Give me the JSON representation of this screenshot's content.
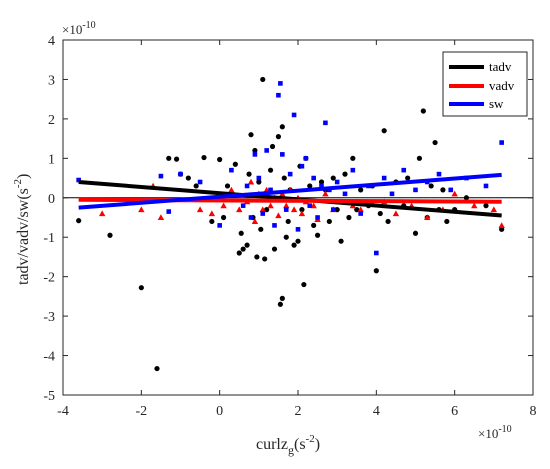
{
  "chart_data": {
    "type": "scatter",
    "xlabel": {
      "main": "curlz",
      "sub": "g",
      "unit": "(s",
      "sup": "-2",
      "close": ")"
    },
    "ylabel": {
      "main": "tadv/vadv/sw",
      "unit": "(s",
      "sup": "-2",
      "close": ")"
    },
    "x_exponent": {
      "base": "×10",
      "power": "-10"
    },
    "y_exponent": {
      "base": "×10",
      "power": "-10"
    },
    "xlim": [
      -4,
      8
    ],
    "ylim": [
      -5,
      4
    ],
    "x_ticks": [
      -4,
      -2,
      0,
      2,
      4,
      6,
      8
    ],
    "y_ticks": [
      -5,
      -4,
      -3,
      -2,
      -1,
      0,
      1,
      2,
      3,
      4
    ],
    "x_tick_labels": [
      "-4",
      "-2",
      "0",
      "2",
      "4",
      "6",
      "8"
    ],
    "y_tick_labels": [
      "-5",
      "-4",
      "-3",
      "-2",
      "-1",
      "0",
      "1",
      "2",
      "3",
      "4"
    ],
    "zero_line": true,
    "grid": false,
    "legend_position": "top-right",
    "series": [
      {
        "name": "tadv",
        "color": "#000000",
        "marker": "circle",
        "trend": {
          "x": [
            -3.6,
            7.2
          ],
          "y": [
            0.4,
            -0.45
          ]
        },
        "points": [
          [
            -3.6,
            -0.58
          ],
          [
            -2.8,
            -0.95
          ],
          [
            -2.0,
            -2.28
          ],
          [
            -1.6,
            -4.33
          ],
          [
            -1.3,
            1.0
          ],
          [
            -1.1,
            0.98
          ],
          [
            -1.0,
            0.6
          ],
          [
            -0.8,
            0.5
          ],
          [
            -0.6,
            0.3
          ],
          [
            -0.4,
            1.02
          ],
          [
            -0.2,
            -0.6
          ],
          [
            0.0,
            0.97
          ],
          [
            0.1,
            -0.5
          ],
          [
            0.2,
            0.3
          ],
          [
            0.3,
            0.1
          ],
          [
            0.4,
            0.85
          ],
          [
            0.5,
            -1.4
          ],
          [
            0.55,
            -0.9
          ],
          [
            0.6,
            -1.3
          ],
          [
            0.7,
            -1.2
          ],
          [
            0.75,
            0.6
          ],
          [
            0.8,
            1.6
          ],
          [
            0.85,
            -0.5
          ],
          [
            0.9,
            1.2
          ],
          [
            0.95,
            -1.5
          ],
          [
            1.0,
            0.4
          ],
          [
            1.05,
            -0.8
          ],
          [
            1.1,
            3.0
          ],
          [
            1.15,
            -1.55
          ],
          [
            1.2,
            -0.3
          ],
          [
            1.3,
            0.7
          ],
          [
            1.35,
            1.3
          ],
          [
            1.4,
            -1.3
          ],
          [
            1.5,
            1.55
          ],
          [
            1.55,
            -2.7
          ],
          [
            1.6,
            -2.55
          ],
          [
            1.6,
            1.8
          ],
          [
            1.65,
            0.5
          ],
          [
            1.7,
            -1.0
          ],
          [
            1.75,
            -0.6
          ],
          [
            1.8,
            0.2
          ],
          [
            1.9,
            -1.2
          ],
          [
            2.0,
            -1.1
          ],
          [
            2.05,
            0.8
          ],
          [
            2.1,
            -0.3
          ],
          [
            2.15,
            -2.2
          ],
          [
            2.2,
            1.0
          ],
          [
            2.3,
            0.3
          ],
          [
            2.4,
            -0.7
          ],
          [
            2.5,
            -0.95
          ],
          [
            2.6,
            0.4
          ],
          [
            2.7,
            0.2
          ],
          [
            2.8,
            -0.6
          ],
          [
            2.9,
            0.5
          ],
          [
            3.0,
            -0.3
          ],
          [
            3.1,
            -1.1
          ],
          [
            3.2,
            0.6
          ],
          [
            3.3,
            -0.5
          ],
          [
            3.4,
            1.0
          ],
          [
            3.5,
            -0.3
          ],
          [
            3.6,
            0.2
          ],
          [
            3.8,
            -0.2
          ],
          [
            3.9,
            0.3
          ],
          [
            4.0,
            -1.85
          ],
          [
            4.1,
            -0.4
          ],
          [
            4.2,
            1.7
          ],
          [
            4.3,
            -0.6
          ],
          [
            4.5,
            0.4
          ],
          [
            4.7,
            -0.2
          ],
          [
            4.8,
            0.5
          ],
          [
            5.0,
            -0.9
          ],
          [
            5.1,
            1.0
          ],
          [
            5.2,
            2.2
          ],
          [
            5.3,
            -0.5
          ],
          [
            5.4,
            0.3
          ],
          [
            5.5,
            1.4
          ],
          [
            5.6,
            -0.3
          ],
          [
            5.7,
            0.2
          ],
          [
            5.8,
            -0.6
          ],
          [
            6.0,
            -0.3
          ],
          [
            6.3,
            0.0
          ],
          [
            6.8,
            -0.2
          ],
          [
            7.2,
            -0.8
          ]
        ]
      },
      {
        "name": "vadv",
        "color": "#ff0000",
        "marker": "triangle",
        "trend": {
          "x": [
            -3.6,
            7.2
          ],
          "y": [
            -0.05,
            -0.1
          ]
        },
        "points": [
          [
            -3.0,
            -0.4
          ],
          [
            -2.0,
            -0.3
          ],
          [
            -1.7,
            0.3
          ],
          [
            -1.5,
            -0.5
          ],
          [
            -0.5,
            -0.3
          ],
          [
            -0.2,
            -0.4
          ],
          [
            0.1,
            -0.2
          ],
          [
            0.3,
            0.2
          ],
          [
            0.5,
            -0.3
          ],
          [
            0.7,
            -0.1
          ],
          [
            0.8,
            0.4
          ],
          [
            0.9,
            -0.6
          ],
          [
            1.0,
            0.1
          ],
          [
            1.1,
            -0.3
          ],
          [
            1.2,
            0.2
          ],
          [
            1.3,
            -0.2
          ],
          [
            1.4,
            0.0
          ],
          [
            1.5,
            -0.45
          ],
          [
            1.6,
            0.1
          ],
          [
            1.7,
            -0.2
          ],
          [
            1.8,
            0.2
          ],
          [
            1.9,
            -0.3
          ],
          [
            2.0,
            0.0
          ],
          [
            2.1,
            -0.4
          ],
          [
            2.2,
            -0.1
          ],
          [
            2.4,
            -0.2
          ],
          [
            2.5,
            -0.55
          ],
          [
            2.7,
            0.1
          ],
          [
            2.9,
            -0.3
          ],
          [
            3.1,
            -0.1
          ],
          [
            3.4,
            -0.2
          ],
          [
            3.6,
            -0.3
          ],
          [
            3.9,
            -0.15
          ],
          [
            4.2,
            -0.1
          ],
          [
            4.5,
            -0.4
          ],
          [
            4.9,
            -0.2
          ],
          [
            5.3,
            -0.5
          ],
          [
            5.7,
            -0.3
          ],
          [
            6.0,
            0.1
          ],
          [
            6.5,
            -0.2
          ],
          [
            7.0,
            -0.3
          ],
          [
            7.2,
            -0.7
          ]
        ]
      },
      {
        "name": "sw",
        "color": "#0000ff",
        "marker": "square",
        "trend": {
          "x": [
            -3.6,
            7.2
          ],
          "y": [
            -0.25,
            0.58
          ]
        },
        "points": [
          [
            -3.6,
            0.45
          ],
          [
            -1.5,
            0.55
          ],
          [
            -1.3,
            -0.35
          ],
          [
            -1.0,
            0.6
          ],
          [
            -0.5,
            0.4
          ],
          [
            0.0,
            -0.7
          ],
          [
            0.3,
            0.7
          ],
          [
            0.6,
            -0.2
          ],
          [
            0.7,
            0.3
          ],
          [
            0.8,
            -0.5
          ],
          [
            0.9,
            1.1
          ],
          [
            1.0,
            0.5
          ],
          [
            1.1,
            -0.4
          ],
          [
            1.2,
            1.2
          ],
          [
            1.3,
            0.2
          ],
          [
            1.4,
            -0.7
          ],
          [
            1.5,
            2.6
          ],
          [
            1.55,
            2.9
          ],
          [
            1.6,
            1.1
          ],
          [
            1.7,
            -0.3
          ],
          [
            1.8,
            0.6
          ],
          [
            1.9,
            2.1
          ],
          [
            2.0,
            -0.8
          ],
          [
            2.1,
            0.8
          ],
          [
            2.2,
            1.0
          ],
          [
            2.3,
            -0.2
          ],
          [
            2.4,
            0.5
          ],
          [
            2.5,
            -0.5
          ],
          [
            2.6,
            0.3
          ],
          [
            2.7,
            1.9
          ],
          [
            2.8,
            0.2
          ],
          [
            2.9,
            -0.3
          ],
          [
            3.0,
            0.4
          ],
          [
            3.2,
            0.1
          ],
          [
            3.4,
            0.7
          ],
          [
            3.6,
            -0.4
          ],
          [
            3.8,
            0.3
          ],
          [
            4.0,
            -1.4
          ],
          [
            4.2,
            0.5
          ],
          [
            4.4,
            0.1
          ],
          [
            4.7,
            0.7
          ],
          [
            5.0,
            0.2
          ],
          [
            5.3,
            0.4
          ],
          [
            5.6,
            0.6
          ],
          [
            5.9,
            0.2
          ],
          [
            6.3,
            0.5
          ],
          [
            6.8,
            0.3
          ],
          [
            7.2,
            1.4
          ]
        ]
      }
    ]
  }
}
